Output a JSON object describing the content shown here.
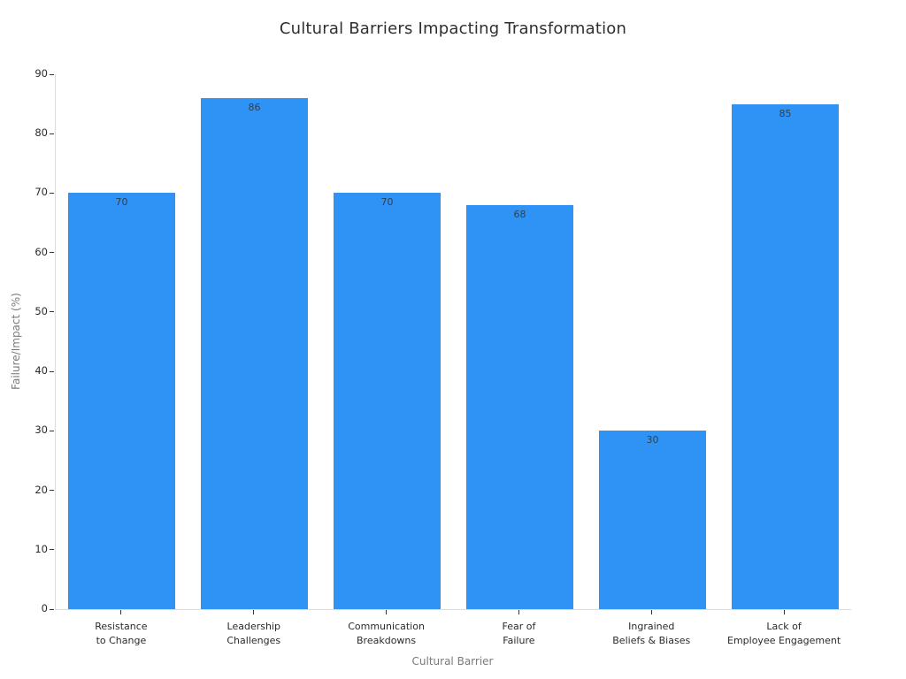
{
  "chart_data": {
    "type": "bar",
    "title": "Cultural Barriers Impacting Transformation",
    "xlabel": "Cultural Barrier",
    "ylabel": "Failure/Impact (%)",
    "categories": [
      "Resistance\nto Change",
      "Leadership\nChallenges",
      "Communication\nBreakdowns",
      "Fear of\nFailure",
      "Ingrained\nBeliefs & Biases",
      "Lack of\nEmployee Engagement"
    ],
    "values": [
      70,
      86,
      70,
      68,
      30,
      85
    ],
    "ylim": [
      0,
      90
    ],
    "ytick_step": 10,
    "yticks": [
      0,
      10,
      20,
      30,
      40,
      50,
      60,
      70,
      80,
      90
    ],
    "grid": false,
    "legend_position": "none",
    "colors": {
      "bar": "#2F93F6",
      "bar_value_label": "#333f48",
      "tick_label": "#2b2b2b",
      "axis_label": "#7a7a7a",
      "title": "#2f2f2f",
      "spine": "#dcdcdc",
      "tick_mark": "#333333",
      "background": "#ffffff"
    }
  }
}
